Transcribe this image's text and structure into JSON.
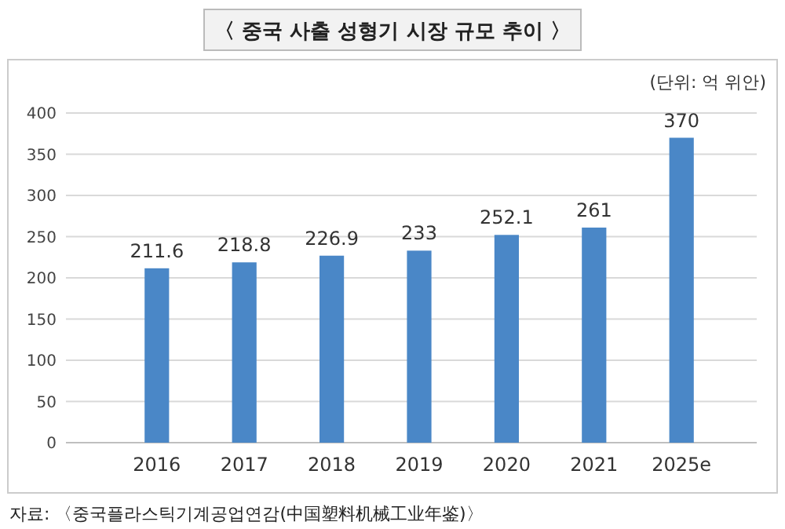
{
  "chart_data": {
    "type": "bar",
    "title": "〈 중국 사출 성형기 시장 규모 추이 〉",
    "subtitle": "(단위: 억 위안)",
    "categories": [
      "2016",
      "2017",
      "2018",
      "2019",
      "2020",
      "2021",
      "2025e"
    ],
    "values": [
      211.6,
      218.8,
      226.9,
      233,
      252.1,
      261,
      370
    ],
    "color": "#4a87c7",
    "ylim": [
      0,
      400
    ],
    "yticks": [
      0,
      50,
      100,
      150,
      200,
      250,
      300,
      350,
      400
    ],
    "grid": "y",
    "data_labels": true,
    "annotations": [
      "자료: 〈중국플라스틱기계공업연감(中国塑料机械工业年鉴)〉"
    ]
  }
}
